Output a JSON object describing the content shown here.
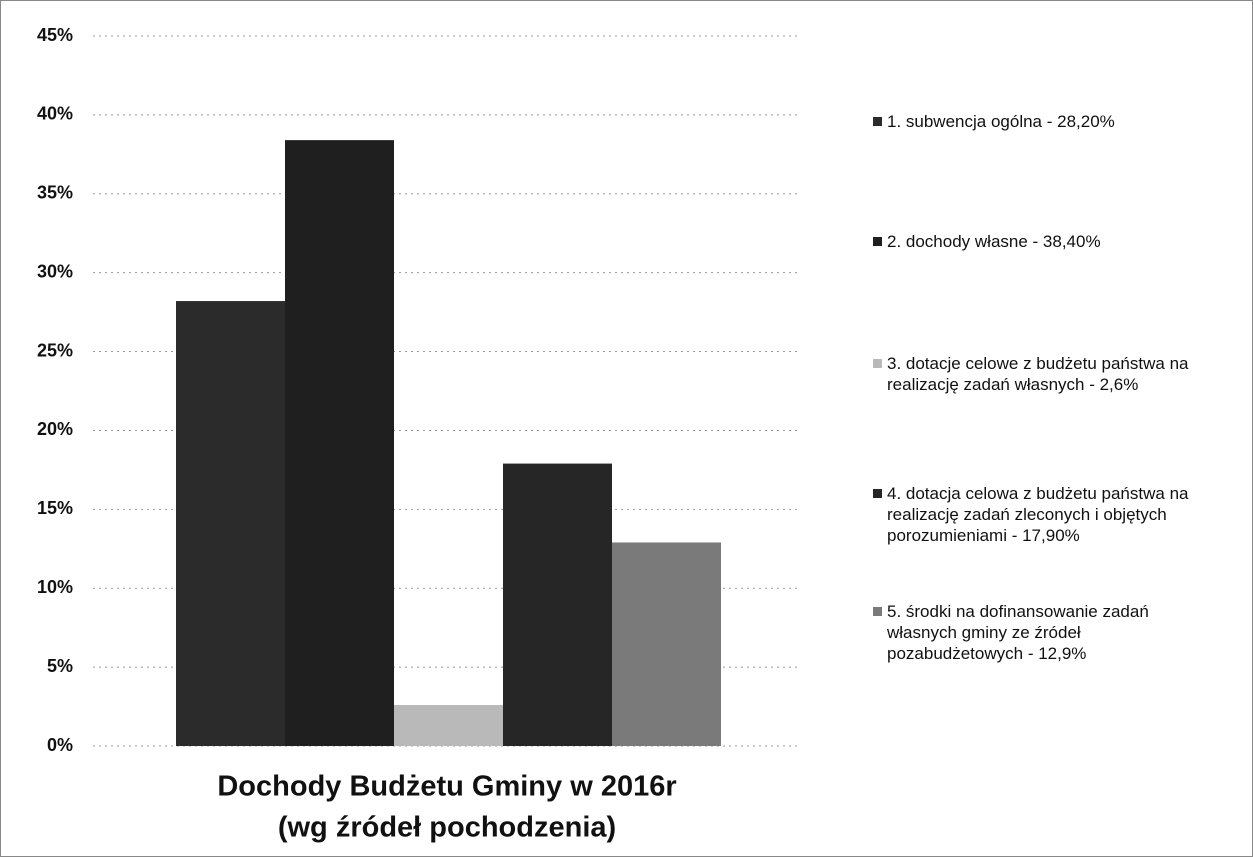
{
  "chart_data": {
    "type": "bar",
    "title": "Dochody Budżetu Gminy w 2016r",
    "subtitle": "(wg źródeł pochodzenia)",
    "categories": [
      null
    ],
    "series": [
      {
        "name": "1. subwencja ogólna - 28,20%",
        "color": "#2b2b2b",
        "values": [
          28.2
        ]
      },
      {
        "name": "2. dochody własne - 38,40%",
        "color": "#1f1f1f",
        "values": [
          38.4
        ]
      },
      {
        "name": "3. dotacje celowe z budżetu państwa na realizację zadań własnych - 2,6%",
        "color": "#b9b9b9",
        "values": [
          2.6
        ]
      },
      {
        "name": "4. dotacja celowa z budżetu państwa na realizację zadań zleconych i objętych porozumieniami - 17,90%",
        "color": "#262626",
        "values": [
          17.9
        ]
      },
      {
        "name": "5. środki na dofinansowanie zadań własnych gminy ze źródeł pozabudżetowych - 12,9%",
        "color": "#7a7a7a",
        "values": [
          12.9
        ]
      }
    ],
    "ylim": [
      0,
      45
    ],
    "yticks": [
      {
        "value": 0,
        "label": "0%"
      },
      {
        "value": 5,
        "label": "5%"
      },
      {
        "value": 10,
        "label": "10%"
      },
      {
        "value": 15,
        "label": "15%"
      },
      {
        "value": 20,
        "label": "20%"
      },
      {
        "value": 25,
        "label": "25%"
      },
      {
        "value": 30,
        "label": "30%"
      },
      {
        "value": 35,
        "label": "35%"
      },
      {
        "value": 40,
        "label": "40%"
      },
      {
        "value": 45,
        "label": "45%"
      }
    ],
    "grid": true,
    "legend": "right"
  }
}
